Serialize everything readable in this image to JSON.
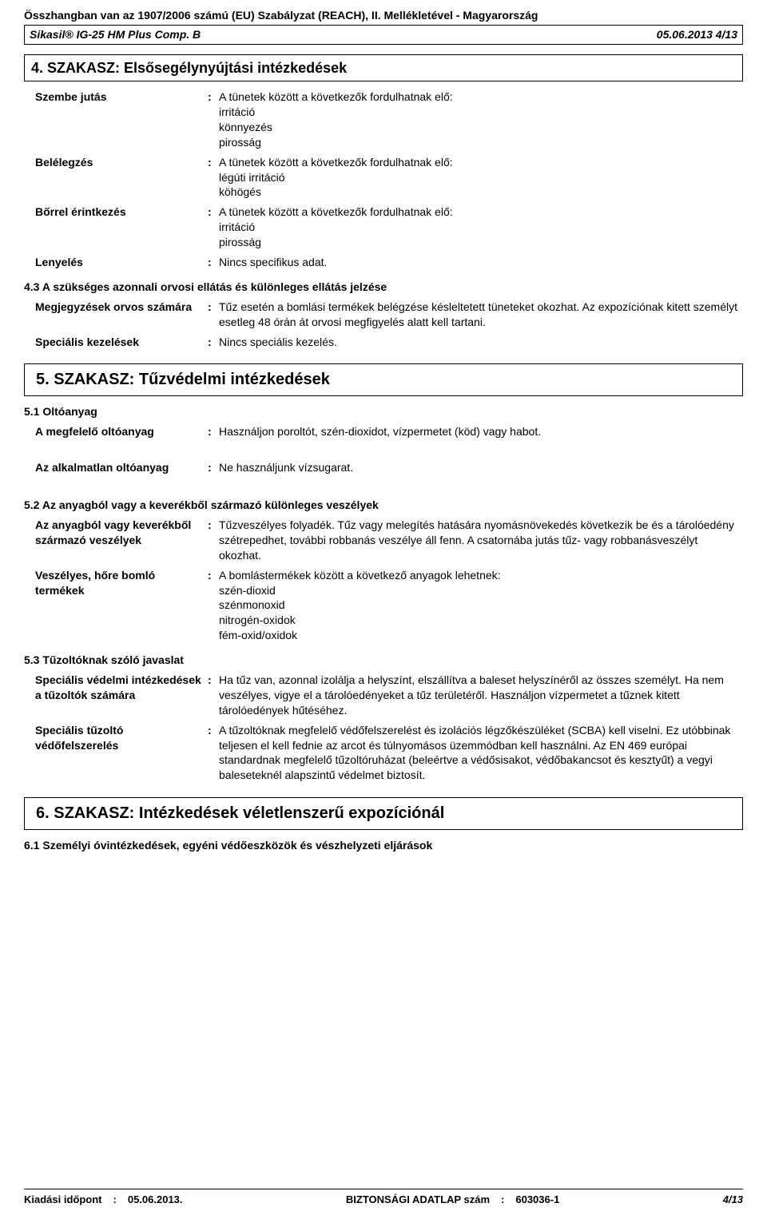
{
  "header": {
    "regulation_line": "Összhangban van az 1907/2006 számú (EU) Szabályzat (REACH), II. Mellékletével - Magyarország",
    "product": "Sikasil® IG-25 HM Plus Comp. B",
    "date_page": "05.06.2013  4/13"
  },
  "section4": {
    "title": "4. SZAKASZ: Elsősegélynyújtási intézkedések",
    "rows": [
      {
        "label": "Szembe jutás",
        "value": "A tünetek között a következők fordulhatnak elő:\nirritáció\nkönnyezés\npirosság"
      },
      {
        "label": "Belélegzés",
        "value": "A tünetek között a következők fordulhatnak elő:\nlégúti irritáció\nköhögés"
      },
      {
        "label": "Bőrrel érintkezés",
        "value": "A tünetek között a következők fordulhatnak elő:\nirritáció\npirosság"
      },
      {
        "label": "Lenyelés",
        "value": "Nincs specifikus adat."
      }
    ],
    "sub43_title": "4.3 A szükséges azonnali orvosi ellátás és különleges ellátás jelzése",
    "sub43_rows": [
      {
        "label": "Megjegyzések orvos számára",
        "value": "Tűz esetén a bomlási termékek belégzése késleltetett tüneteket okozhat.  Az expozíciónak kitett személyt esetleg 48 órán át orvosi megfigyelés alatt kell tartani."
      },
      {
        "label": "Speciális kezelések",
        "value": "Nincs speciális kezelés."
      }
    ]
  },
  "section5": {
    "title": "5. SZAKASZ: Tűzvédelmi intézkedések",
    "sub51_title": "5.1 Oltóanyag",
    "sub51_rows": [
      {
        "label": "A megfelelő oltóanyag",
        "value": "Használjon poroltót, szén-dioxidot, vízpermetet (köd) vagy habot."
      },
      {
        "label": "Az alkalmatlan oltóanyag",
        "value": "Ne használjunk vízsugarat."
      }
    ],
    "sub52_title": "5.2 Az anyagból vagy a keverékből származó különleges veszélyek",
    "sub52_rows": [
      {
        "label": "Az anyagból vagy keverékből származó veszélyek",
        "value": "Tűzveszélyes folyadék.  Tűz vagy melegítés hatására nyomásnövekedés következik be és a tárolóedény szétrepedhet, további robbanás veszélye áll fenn.  A csatornába jutás tűz- vagy robbanásveszélyt okozhat."
      },
      {
        "label": "Veszélyes, hőre bomló termékek",
        "value": "A bomlástermékek között a következő anyagok lehetnek:\nszén-dioxid\nszénmonoxid\nnitrogén-oxidok\nfém-oxid/oxidok"
      }
    ],
    "sub53_title": "5.3 Tűzoltóknak szóló javaslat",
    "sub53_rows": [
      {
        "label": "Speciális védelmi intézkedések a tűzoltók számára",
        "value": "Ha tűz van, azonnal izolálja a helyszínt, elszállítva a baleset helyszínéről az összes személyt.  Ha nem veszélyes, vigye el a tárolóedényeket a tűz területéről. Használjon vízpermetet a tűznek kitett tárolóedények hűtéséhez."
      },
      {
        "label": "Speciális tűzoltó védőfelszerelés",
        "value": "A tűzoltóknak megfelelő védőfelszerelést és izolációs légzőkészüléket (SCBA) kell viselni. Ez utóbbinak teljesen el kell fednie az arcot és túlnyomásos üzemmódban kell használni.  Az EN 469 európai standardnak megfelelő tűzoltóruházat (beleértve a védősisakot, védőbakancsot és kesztyűt) a vegyi baleseteknél alapszintű védelmet biztosít."
      }
    ]
  },
  "section6": {
    "title": "6. SZAKASZ: Intézkedések véletlenszerű expozíciónál",
    "sub61_title": "6.1 Személyi óvintézkedések, egyéni védőeszközök és vészhelyzeti eljárások"
  },
  "footer": {
    "left_label": "Kiadási időpont",
    "left_value": "05.06.2013.",
    "center_label": "BIZTONSÁGI ADATLAP szám",
    "center_value": "603036-1",
    "page": "4/13"
  }
}
